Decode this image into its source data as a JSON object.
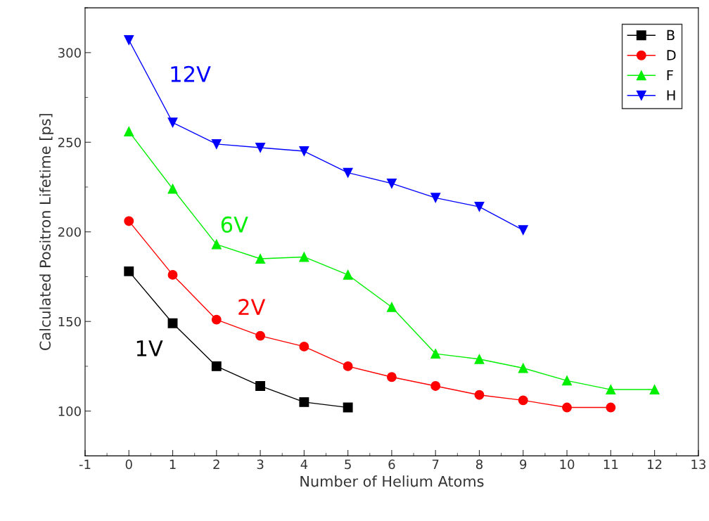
{
  "chart_data": {
    "type": "line",
    "xlabel": "Number of Helium Atoms",
    "ylabel": "Calculated Positron Lifetime [ps]",
    "xlim": [
      -1,
      13
    ],
    "xticks": [
      -1,
      0,
      1,
      2,
      3,
      4,
      5,
      6,
      7,
      8,
      9,
      10,
      11,
      12,
      13
    ],
    "ylim": [
      75,
      325
    ],
    "yticks": [
      100,
      150,
      200,
      250,
      300
    ],
    "grid": false,
    "legend": "top right",
    "line_style": "solid",
    "series": [
      {
        "name": "B",
        "color": "#000000",
        "marker": "square",
        "x": [
          0,
          1,
          2,
          3,
          4,
          5
        ],
        "values": [
          178,
          149,
          125,
          114,
          105,
          102
        ]
      },
      {
        "name": "D",
        "color": "#ff0000",
        "marker": "circle",
        "x": [
          0,
          1,
          2,
          3,
          4,
          5,
          6,
          7,
          8,
          9,
          10,
          11
        ],
        "values": [
          206,
          176,
          151,
          142,
          136,
          125,
          119,
          114,
          109,
          106,
          102,
          102
        ]
      },
      {
        "name": "F",
        "color": "#00ee00",
        "marker": "triangle",
        "x": [
          0,
          1,
          2,
          3,
          4,
          5,
          6,
          7,
          8,
          9,
          10,
          11,
          12
        ],
        "values": [
          256,
          224,
          193,
          185,
          186,
          176,
          158,
          132,
          129,
          124,
          117,
          112,
          112
        ]
      },
      {
        "name": "H",
        "color": "#0000ff",
        "marker": "triangle_down",
        "x": [
          0,
          1,
          2,
          3,
          4,
          5,
          6,
          7,
          8,
          9
        ],
        "values": [
          307,
          261,
          249,
          247,
          245,
          233,
          227,
          219,
          214,
          201
        ]
      }
    ],
    "annotations": [
      "1V",
      "2V",
      "6V",
      "12V"
    ]
  }
}
